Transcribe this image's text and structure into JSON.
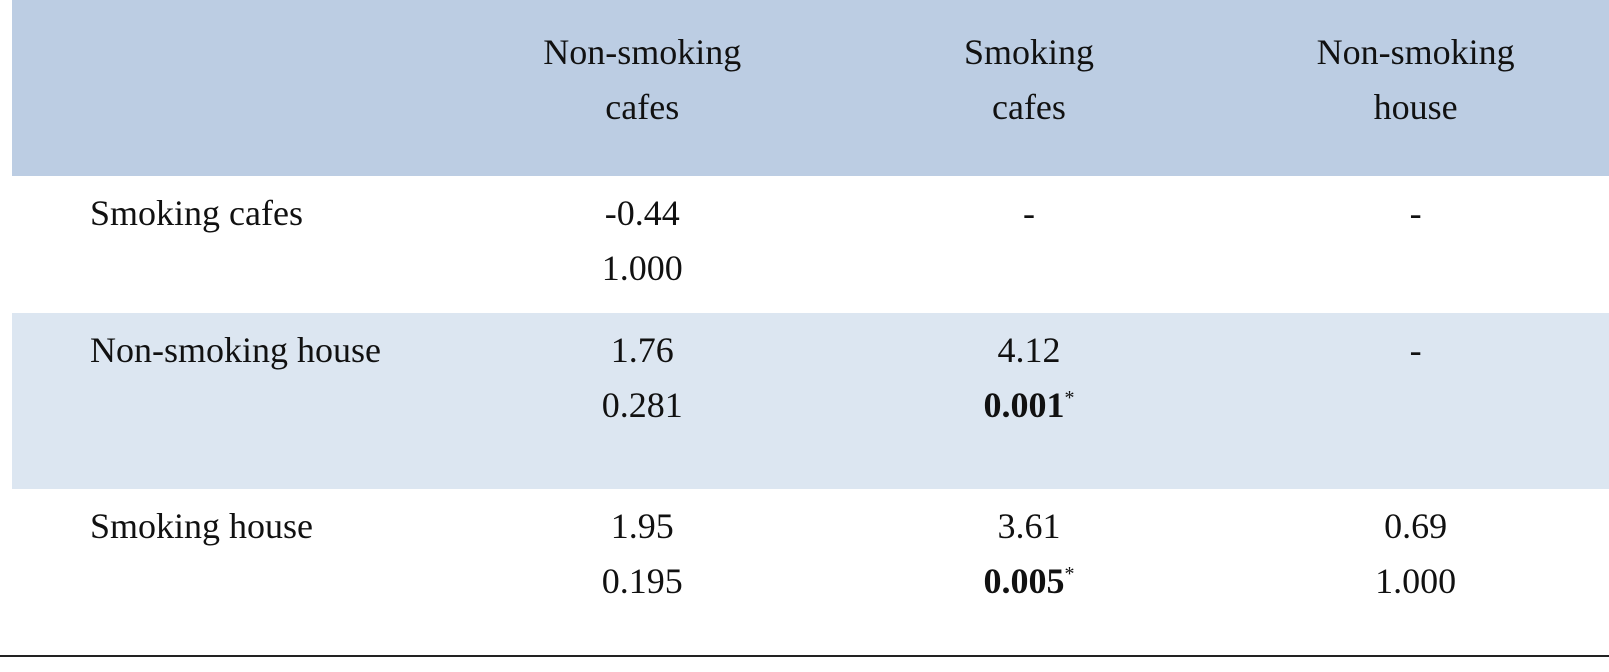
{
  "table": {
    "header": {
      "row_label": "",
      "columns": [
        [
          "Non-smoking",
          "cafes"
        ],
        [
          "Smoking",
          "cafes"
        ],
        [
          "Non-smoking",
          "house"
        ]
      ]
    },
    "rows": [
      {
        "label": "Smoking cafes",
        "cells": [
          {
            "value": "-0.44",
            "p": "1.000",
            "significant": false,
            "marker": ""
          },
          {
            "value": "-",
            "p": "",
            "significant": false,
            "marker": ""
          },
          {
            "value": "-",
            "p": "",
            "significant": false,
            "marker": ""
          }
        ]
      },
      {
        "label": "Non-smoking house",
        "cells": [
          {
            "value": "1.76",
            "p": "0.281",
            "significant": false,
            "marker": ""
          },
          {
            "value": "4.12",
            "p": "0.001",
            "significant": true,
            "marker": "*"
          },
          {
            "value": "-",
            "p": "",
            "significant": false,
            "marker": ""
          }
        ]
      },
      {
        "label": "Smoking house",
        "cells": [
          {
            "value": "1.95",
            "p": "0.195",
            "significant": false,
            "marker": ""
          },
          {
            "value": "3.61",
            "p": "0.005",
            "significant": true,
            "marker": "*"
          },
          {
            "value": "0.69",
            "p": "1.000",
            "significant": false,
            "marker": ""
          }
        ]
      }
    ],
    "colors": {
      "header_bg": "#bccde3",
      "band_bg": "#dce6f1",
      "rule": "#222222"
    }
  }
}
